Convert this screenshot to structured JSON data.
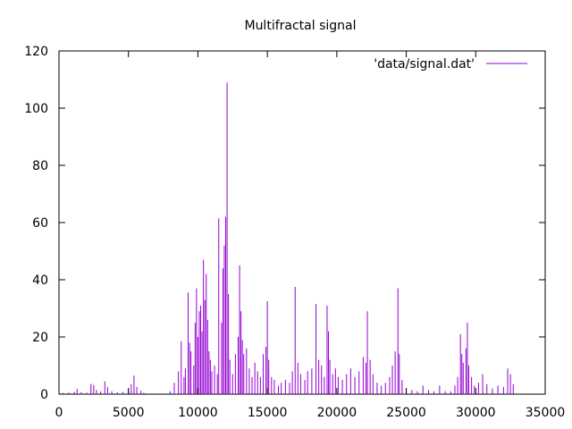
{
  "chart_data": {
    "type": "line",
    "title": "Multifractal signal",
    "xlabel": "",
    "ylabel": "",
    "xlim": [
      0,
      35000
    ],
    "ylim": [
      0,
      120
    ],
    "x_ticks": [
      0,
      5000,
      10000,
      15000,
      20000,
      25000,
      30000,
      35000
    ],
    "y_ticks": [
      0,
      20,
      40,
      60,
      80,
      100,
      120
    ],
    "grid": false,
    "legend_position": "top-right",
    "series": [
      {
        "name": "'data/signal.dat'",
        "color": "#9400d3",
        "style": "impulses",
        "points": [
          [
            300,
            0.4
          ],
          [
            700,
            0.6
          ],
          [
            1100,
            0.8
          ],
          [
            1300,
            1.8
          ],
          [
            1600,
            0.7
          ],
          [
            2000,
            0.5
          ],
          [
            2300,
            3.6
          ],
          [
            2500,
            3.2
          ],
          [
            2700,
            1.5
          ],
          [
            3000,
            1.0
          ],
          [
            3300,
            4.5
          ],
          [
            3500,
            2.5
          ],
          [
            3800,
            1.0
          ],
          [
            4200,
            0.6
          ],
          [
            4600,
            0.8
          ],
          [
            5000,
            1.5
          ],
          [
            5200,
            3.5
          ],
          [
            5400,
            6.5
          ],
          [
            5600,
            2.5
          ],
          [
            5900,
            1.2
          ],
          [
            6100,
            0.5
          ],
          [
            8000,
            1.0
          ],
          [
            8300,
            4.0
          ],
          [
            8600,
            8.0
          ],
          [
            8800,
            18.5
          ],
          [
            9000,
            6.0
          ],
          [
            9100,
            9.0
          ],
          [
            9300,
            35.5
          ],
          [
            9400,
            18.0
          ],
          [
            9500,
            15.0
          ],
          [
            9700,
            10.0
          ],
          [
            9800,
            25.0
          ],
          [
            9900,
            37.0
          ],
          [
            10000,
            20.0
          ],
          [
            10100,
            29.0
          ],
          [
            10200,
            31.0
          ],
          [
            10300,
            22.0
          ],
          [
            10400,
            47.0
          ],
          [
            10500,
            33.0
          ],
          [
            10600,
            42.0
          ],
          [
            10700,
            26.0
          ],
          [
            10800,
            15.0
          ],
          [
            10900,
            12.0
          ],
          [
            11000,
            8.0
          ],
          [
            11200,
            10.0
          ],
          [
            11400,
            7.0
          ],
          [
            11500,
            61.5
          ],
          [
            11700,
            25.0
          ],
          [
            11800,
            44.0
          ],
          [
            11900,
            52.0
          ],
          [
            12000,
            62.0
          ],
          [
            12100,
            109.0
          ],
          [
            12200,
            35.0
          ],
          [
            12300,
            12.0
          ],
          [
            12500,
            7.0
          ],
          [
            12700,
            14.0
          ],
          [
            12900,
            20.0
          ],
          [
            13000,
            45.0
          ],
          [
            13100,
            29.0
          ],
          [
            13200,
            19.0
          ],
          [
            13300,
            14.0
          ],
          [
            13500,
            16.0
          ],
          [
            13700,
            9.0
          ],
          [
            13900,
            6.0
          ],
          [
            14100,
            11.0
          ],
          [
            14300,
            8.0
          ],
          [
            14500,
            6.0
          ],
          [
            14700,
            14.0
          ],
          [
            14900,
            16.5
          ],
          [
            15000,
            32.5
          ],
          [
            15100,
            12.0
          ],
          [
            15300,
            6.0
          ],
          [
            15500,
            5.0
          ],
          [
            15800,
            3.0
          ],
          [
            16000,
            4.0
          ],
          [
            16300,
            5.0
          ],
          [
            16600,
            4.0
          ],
          [
            16800,
            8.0
          ],
          [
            17000,
            37.5
          ],
          [
            17200,
            11.0
          ],
          [
            17400,
            7.0
          ],
          [
            17700,
            5.0
          ],
          [
            17900,
            8.0
          ],
          [
            18200,
            9.0
          ],
          [
            18500,
            31.5
          ],
          [
            18700,
            12.0
          ],
          [
            18900,
            10.0
          ],
          [
            19100,
            6.0
          ],
          [
            19300,
            31.0
          ],
          [
            19400,
            22.0
          ],
          [
            19500,
            12.0
          ],
          [
            19700,
            7.0
          ],
          [
            19900,
            9.0
          ],
          [
            20100,
            6.0
          ],
          [
            20400,
            5.0
          ],
          [
            20700,
            7.0
          ],
          [
            21000,
            9.0
          ],
          [
            21300,
            6.0
          ],
          [
            21600,
            8.0
          ],
          [
            21900,
            13.0
          ],
          [
            22100,
            11.0
          ],
          [
            22200,
            29.0
          ],
          [
            22400,
            12.0
          ],
          [
            22600,
            7.0
          ],
          [
            22900,
            4.0
          ],
          [
            23200,
            3.0
          ],
          [
            23500,
            4.0
          ],
          [
            23800,
            6.0
          ],
          [
            24000,
            10.0
          ],
          [
            24200,
            15.0
          ],
          [
            24400,
            37.0
          ],
          [
            24500,
            14.0
          ],
          [
            24700,
            5.0
          ],
          [
            25000,
            2.0
          ],
          [
            25400,
            1.5
          ],
          [
            25800,
            1.0
          ],
          [
            26200,
            3.0
          ],
          [
            26600,
            1.5
          ],
          [
            27000,
            1.0
          ],
          [
            27400,
            3.0
          ],
          [
            27800,
            1.0
          ],
          [
            28200,
            1.0
          ],
          [
            28500,
            3.0
          ],
          [
            28700,
            6.0
          ],
          [
            28900,
            21.0
          ],
          [
            29000,
            14.0
          ],
          [
            29100,
            11.0
          ],
          [
            29300,
            16.0
          ],
          [
            29400,
            25.0
          ],
          [
            29500,
            10.0
          ],
          [
            29700,
            6.0
          ],
          [
            29900,
            3.0
          ],
          [
            30200,
            4.0
          ],
          [
            30500,
            7.0
          ],
          [
            30800,
            3.5
          ],
          [
            31200,
            2.0
          ],
          [
            31600,
            3.0
          ],
          [
            32000,
            2.5
          ],
          [
            32300,
            9.0
          ],
          [
            32500,
            7.0
          ],
          [
            32700,
            3.5
          ]
        ]
      }
    ]
  }
}
